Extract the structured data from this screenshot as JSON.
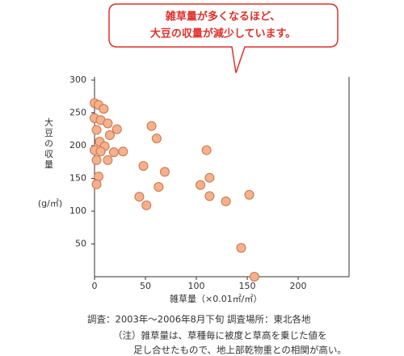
{
  "chart_data": {
    "type": "scatter",
    "annotations": [
      "雑草量が多くなるほど、",
      "大豆の収量が減少しています。"
    ],
    "ylabel": [
      "大豆の収量",
      "(g/㎡)"
    ],
    "xlabel": "雑草量（×0.01㎡/㎡）",
    "notes": [
      "調査：2003年～2006年8月下旬 調査場所：東北各地",
      "（注）雑草量は、草種毎に被度と草高を乗じた値を",
      "足し合せたもので、地上部乾物重との相関が高い。"
    ],
    "color": "#f5b08c",
    "x": [
      0,
      4,
      9,
      0,
      6,
      13,
      2,
      22,
      15,
      5,
      10,
      0,
      6,
      19,
      28,
      2,
      13,
      4,
      2,
      56,
      61,
      48,
      69,
      63,
      44,
      51,
      110,
      113,
      104,
      113,
      129,
      152,
      144,
      157
    ],
    "values": [
      265,
      262,
      256,
      242,
      239,
      234,
      224,
      225,
      216,
      206,
      199,
      193,
      191,
      190,
      191,
      178,
      178,
      153,
      141,
      230,
      211,
      169,
      160,
      137,
      122,
      109,
      193,
      151,
      140,
      123,
      115,
      125,
      44,
      0
    ],
    "xlim": [
      0,
      250
    ],
    "ylim": [
      0,
      300
    ],
    "xticks": [
      0,
      50,
      100,
      150,
      200
    ],
    "yticks": [
      50,
      100,
      150,
      200,
      250,
      300
    ]
  }
}
